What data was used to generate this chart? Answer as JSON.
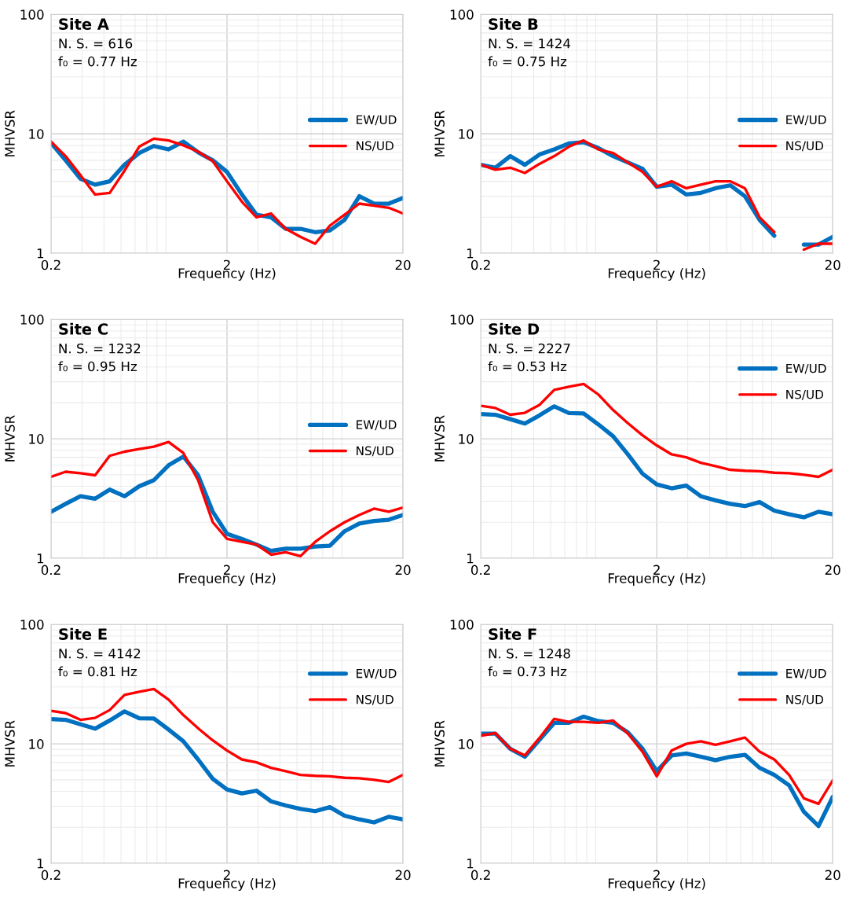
{
  "chart_data": [
    {
      "type": "line",
      "title": "Site A",
      "annotations": [
        "N. S. = 616",
        "f₀ = 0.77 Hz"
      ],
      "xlabel": "Frequency (Hz)",
      "ylabel": "MHVSR",
      "log": "xy",
      "xlim": [
        0.2,
        20
      ],
      "ylim": [
        1,
        100
      ],
      "xticks": [
        0.2,
        2,
        20
      ],
      "yticks": [
        1,
        10,
        100
      ],
      "grid": true,
      "legend": "right",
      "line_style": "solid",
      "x": [
        0.2,
        0.242,
        0.294,
        0.356,
        0.431,
        0.523,
        0.634,
        0.768,
        0.931,
        1.13,
        1.37,
        1.66,
        2.0,
        2.43,
        2.94,
        3.56,
        4.31,
        5.23,
        6.34,
        7.68,
        9.31,
        11.3,
        13.7,
        16.6,
        20
      ],
      "series": [
        {
          "name": "EW/UD",
          "color": "#0070c0",
          "values": [
            8.4,
            6.0,
            4.2,
            3.75,
            4.0,
            5.5,
            6.9,
            7.9,
            7.4,
            8.6,
            7.0,
            6.0,
            4.8,
            3.1,
            2.1,
            2.0,
            1.6,
            1.6,
            1.5,
            1.55,
            1.9,
            3.0,
            2.6,
            2.6,
            2.9
          ]
        },
        {
          "name": "NS/UD",
          "color": "#ff0000",
          "values": [
            8.6,
            6.5,
            4.5,
            3.1,
            3.2,
            4.9,
            7.8,
            9.1,
            8.8,
            8.0,
            7.1,
            5.9,
            4.0,
            2.7,
            2.0,
            2.15,
            1.6,
            1.37,
            1.2,
            1.7,
            2.1,
            2.6,
            2.5,
            2.4,
            2.15
          ]
        }
      ]
    },
    {
      "type": "line",
      "title": "Site B",
      "annotations": [
        "N. S. = 1424",
        "f₀ = 0.75 Hz"
      ],
      "xlabel": "Frequency (Hz)",
      "ylabel": "MHVSR",
      "log": "xy",
      "xlim": [
        0.2,
        20
      ],
      "ylim": [
        1,
        100
      ],
      "xticks": [
        0.2,
        2,
        20
      ],
      "yticks": [
        1,
        10,
        100
      ],
      "grid": true,
      "legend": "right",
      "line_style": "solid",
      "x": [
        0.2,
        0.242,
        0.294,
        0.356,
        0.431,
        0.523,
        0.634,
        0.768,
        0.931,
        1.13,
        1.37,
        1.66,
        2.0,
        2.43,
        2.94,
        3.56,
        4.31,
        5.23,
        6.34,
        7.68,
        9.31,
        11.3,
        13.7,
        16.6,
        20
      ],
      "series": [
        {
          "name": "EW/UD",
          "color": "#0070c0",
          "values": [
            5.5,
            5.2,
            6.5,
            5.5,
            6.7,
            7.4,
            8.3,
            8.5,
            7.6,
            6.5,
            5.75,
            5.1,
            3.6,
            3.75,
            3.1,
            3.2,
            3.5,
            3.7,
            3.0,
            1.9,
            1.4,
            null,
            1.18,
            1.18,
            1.37
          ]
        },
        {
          "name": "NS/UD",
          "color": "#ff0000",
          "values": [
            5.5,
            5.0,
            5.2,
            4.7,
            5.6,
            6.5,
            7.8,
            8.8,
            7.4,
            6.9,
            5.75,
            4.8,
            3.6,
            4.0,
            3.5,
            3.75,
            4.0,
            4.0,
            3.5,
            2.0,
            1.5,
            null,
            1.07,
            1.2,
            1.2
          ]
        }
      ]
    },
    {
      "type": "line",
      "title": "Site C",
      "annotations": [
        "N. S. = 1232",
        "f₀ = 0.95 Hz"
      ],
      "xlabel": "Frequency (Hz)",
      "ylabel": "MHVSR",
      "log": "xy",
      "xlim": [
        0.2,
        20
      ],
      "ylim": [
        1,
        100
      ],
      "xticks": [
        0.2,
        2,
        20
      ],
      "yticks": [
        1,
        10,
        100
      ],
      "grid": true,
      "legend": "right",
      "line_style": "solid",
      "x": [
        0.2,
        0.242,
        0.294,
        0.356,
        0.431,
        0.523,
        0.634,
        0.768,
        0.931,
        1.13,
        1.37,
        1.66,
        2.0,
        2.43,
        2.94,
        3.56,
        4.31,
        5.23,
        6.34,
        7.68,
        9.31,
        11.3,
        13.7,
        16.6,
        20
      ],
      "series": [
        {
          "name": "EW/UD",
          "color": "#0070c0",
          "values": [
            2.45,
            2.85,
            3.3,
            3.15,
            3.75,
            3.3,
            4.0,
            4.5,
            6.0,
            7.1,
            4.95,
            2.45,
            1.6,
            1.45,
            1.3,
            1.15,
            1.2,
            1.2,
            1.25,
            1.27,
            1.68,
            1.95,
            2.05,
            2.1,
            2.3
          ]
        },
        {
          "name": "NS/UD",
          "color": "#ff0000",
          "values": [
            4.8,
            5.3,
            5.15,
            4.95,
            7.2,
            7.8,
            8.2,
            8.6,
            9.4,
            7.6,
            4.5,
            2.0,
            1.45,
            1.37,
            1.3,
            1.07,
            1.12,
            1.04,
            1.37,
            1.68,
            2.0,
            2.3,
            2.6,
            2.45,
            2.65
          ]
        }
      ]
    },
    {
      "type": "line",
      "title": "Site D",
      "annotations": [
        "N. S. = 2227",
        "f₀ = 0.53 Hz"
      ],
      "xlabel": "Frequency (Hz)",
      "ylabel": "MHVSR",
      "log": "xy",
      "xlim": [
        0.2,
        20
      ],
      "ylim": [
        1,
        100
      ],
      "xticks": [
        0.2,
        2,
        20
      ],
      "yticks": [
        1,
        10,
        100
      ],
      "grid": true,
      "legend": "top right",
      "line_style": "solid",
      "x": [
        0.2,
        0.242,
        0.294,
        0.356,
        0.431,
        0.523,
        0.634,
        0.768,
        0.931,
        1.13,
        1.37,
        1.66,
        2.0,
        2.43,
        2.94,
        3.56,
        4.31,
        5.23,
        6.34,
        7.68,
        9.31,
        11.3,
        13.7,
        16.6,
        20
      ],
      "series": [
        {
          "name": "EW/UD",
          "color": "#0070c0",
          "values": [
            16.1,
            15.9,
            14.6,
            13.4,
            15.7,
            18.7,
            16.4,
            16.3,
            13.2,
            10.5,
            7.4,
            5.1,
            4.15,
            3.85,
            4.05,
            3.3,
            3.05,
            2.85,
            2.73,
            2.95,
            2.5,
            2.33,
            2.2,
            2.45,
            2.33
          ]
        },
        {
          "name": "NS/UD",
          "color": "#ff0000",
          "values": [
            18.9,
            18.1,
            15.9,
            16.5,
            19.2,
            25.7,
            27.3,
            28.8,
            23.5,
            17.4,
            13.5,
            10.7,
            8.8,
            7.4,
            7.0,
            6.3,
            5.9,
            5.5,
            5.4,
            5.35,
            5.2,
            5.15,
            5.0,
            4.8,
            5.5
          ]
        }
      ]
    },
    {
      "type": "line",
      "title": "Site E",
      "annotations": [
        "N. S. = 4142",
        "f₀ = 0.81 Hz"
      ],
      "xlabel": "Frequency (Hz)",
      "ylabel": "MHVSR",
      "log": "xy",
      "xlim": [
        0.2,
        20
      ],
      "ylim": [
        1,
        100
      ],
      "xticks": [
        0.2,
        2,
        20
      ],
      "yticks": [
        1,
        10,
        100
      ],
      "grid": true,
      "legend": "top right",
      "line_style": "solid",
      "x": [
        0.2,
        0.242,
        0.294,
        0.356,
        0.431,
        0.523,
        0.634,
        0.768,
        0.931,
        1.13,
        1.37,
        1.66,
        2.0,
        2.43,
        2.94,
        3.56,
        4.31,
        5.23,
        6.34,
        7.68,
        9.31,
        11.3,
        13.7,
        16.6,
        20
      ],
      "series": [
        {
          "name": "EW/UD",
          "color": "#0070c0",
          "values": [
            16.1,
            15.9,
            14.6,
            13.4,
            15.7,
            18.7,
            16.4,
            16.3,
            13.2,
            10.5,
            7.4,
            5.1,
            4.15,
            3.85,
            4.05,
            3.3,
            3.05,
            2.85,
            2.73,
            2.95,
            2.5,
            2.33,
            2.2,
            2.45,
            2.33
          ]
        },
        {
          "name": "NS/UD",
          "color": "#ff0000",
          "values": [
            18.9,
            18.1,
            15.9,
            16.5,
            19.2,
            25.7,
            27.3,
            28.8,
            23.5,
            17.4,
            13.5,
            10.7,
            8.8,
            7.4,
            7.0,
            6.3,
            5.9,
            5.5,
            5.4,
            5.35,
            5.2,
            5.15,
            5.0,
            4.8,
            5.5
          ]
        }
      ]
    },
    {
      "type": "line",
      "title": "Site F",
      "annotations": [
        "N. S. = 1248",
        "f₀ = 0.73 Hz"
      ],
      "xlabel": "Frequency (Hz)",
      "ylabel": "MHVSR",
      "log": "xy",
      "xlim": [
        0.2,
        20
      ],
      "ylim": [
        1,
        100
      ],
      "xticks": [
        0.2,
        2,
        20
      ],
      "yticks": [
        1,
        10,
        100
      ],
      "grid": true,
      "legend": "top right",
      "line_style": "solid",
      "x": [
        0.2,
        0.242,
        0.294,
        0.356,
        0.431,
        0.523,
        0.634,
        0.768,
        0.931,
        1.13,
        1.37,
        1.66,
        2.0,
        2.43,
        2.94,
        3.56,
        4.31,
        5.23,
        6.34,
        7.68,
        9.31,
        11.3,
        13.7,
        16.6,
        20
      ],
      "series": [
        {
          "name": "EW/UD",
          "color": "#0070c0",
          "values": [
            12.2,
            12.2,
            9.1,
            7.8,
            10.8,
            15.0,
            15.0,
            16.9,
            15.5,
            15.0,
            12.5,
            9.1,
            5.9,
            8.0,
            8.3,
            7.8,
            7.3,
            7.8,
            8.1,
            6.3,
            5.5,
            4.5,
            2.7,
            2.05,
            3.6
          ]
        },
        {
          "name": "NS/UD",
          "color": "#ff0000",
          "values": [
            11.7,
            12.3,
            9.1,
            8.0,
            11.2,
            16.2,
            15.3,
            15.3,
            15.0,
            15.7,
            12.2,
            8.6,
            5.35,
            8.8,
            10.0,
            10.5,
            9.8,
            10.5,
            11.3,
            8.6,
            7.4,
            5.5,
            3.5,
            3.15,
            4.95
          ]
        }
      ]
    }
  ]
}
